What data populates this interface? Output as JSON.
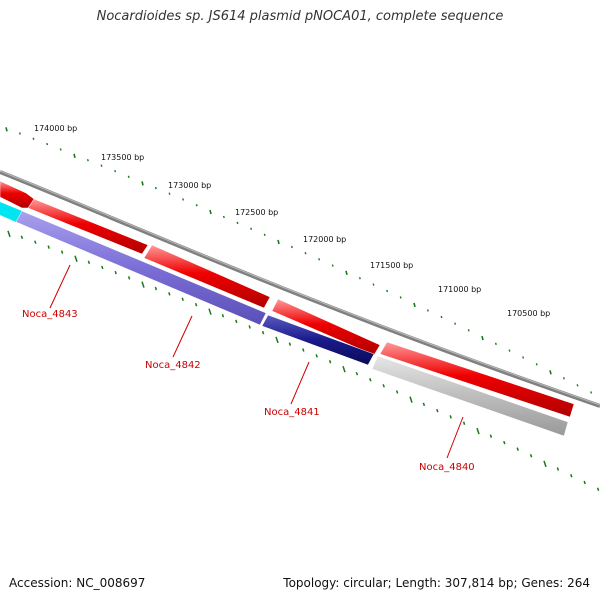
{
  "title": "Nocardioides sp. JS614 plasmid pNOCA01, complete sequence",
  "footer": {
    "accession": "Accession: NC_008697",
    "stats": "Topology: circular; Length: 307,814 bp; Genes: 264"
  },
  "scale_labels": [
    "174000 bp",
    "173500 bp",
    "173000 bp",
    "172500 bp",
    "172000 bp",
    "171500 bp",
    "171000 bp",
    "170500 bp"
  ],
  "genes": [
    {
      "name": "Noca_4843",
      "color": "#7b6fd6"
    },
    {
      "name": "Noca_4842",
      "color": "#7b6fd6"
    },
    {
      "name": "Noca_4841",
      "color": "#1a1a8c"
    },
    {
      "name": "Noca_4840",
      "color": "#b8b8b8"
    }
  ],
  "colors": {
    "forward_feature": "#ee0000",
    "backbone": "#808080",
    "tick": "#1a7a1a",
    "cyan_feature": "#00e5f0"
  }
}
